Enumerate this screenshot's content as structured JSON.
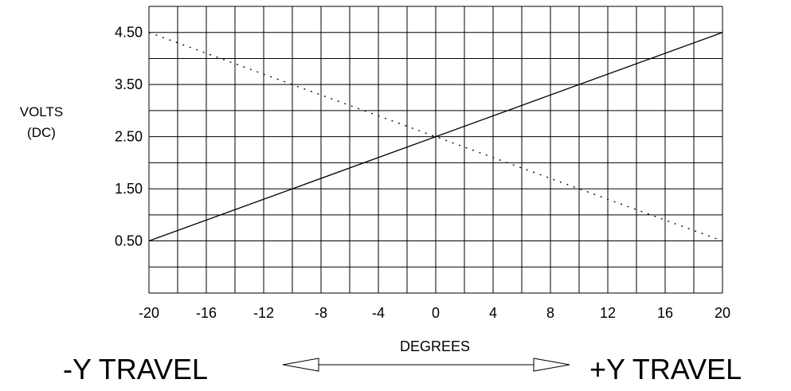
{
  "chart_data": {
    "type": "line",
    "xlabel": "DEGREES",
    "ylabel_lines": [
      "VOLTS",
      "(DC)"
    ],
    "xlim": [
      -20,
      20
    ],
    "ylim": [
      -0.5,
      5.0
    ],
    "x_ticks": [
      -20,
      -16,
      -12,
      -8,
      -4,
      0,
      4,
      8,
      12,
      16,
      20
    ],
    "x_tick_labels": [
      "-20",
      "-16",
      "-12",
      "-8",
      "-4",
      "0",
      "4",
      "8",
      "12",
      "16",
      "20"
    ],
    "y_ticks": [
      0.5,
      1.5,
      2.5,
      3.5,
      4.5
    ],
    "y_tick_labels": [
      "0.50",
      "1.50",
      "2.50",
      "3.50",
      "4.50"
    ],
    "grid": true,
    "grid_x_step": 2,
    "grid_y_step": 0.5,
    "series": [
      {
        "style": "solid",
        "x": [
          -20,
          20
        ],
        "y": [
          0.5,
          4.5
        ]
      },
      {
        "style": "dotted",
        "x": [
          -20,
          20
        ],
        "y": [
          4.5,
          0.5
        ]
      }
    ],
    "direction": {
      "left_label": "-Y TRAVEL",
      "right_label": "+Y TRAVEL"
    }
  },
  "colors": {
    "line": "#000000",
    "grid": "#000000",
    "background": "#ffffff"
  }
}
